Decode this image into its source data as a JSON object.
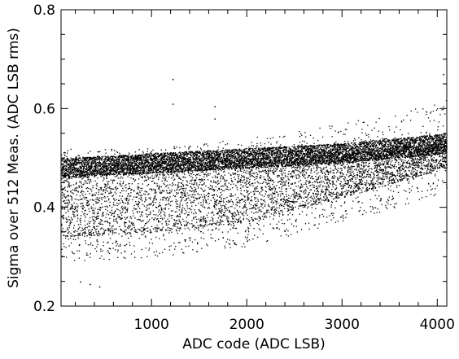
{
  "chart_data": {
    "type": "scatter",
    "xlabel": "ADC code (ADC LSB)",
    "ylabel": "Sigma over 512 Meas. (ADC LSB rms)",
    "xlim": [
      50,
      4100
    ],
    "ylim": [
      0.2,
      0.8
    ],
    "x_ticks": [
      1000,
      2000,
      3000,
      4000
    ],
    "y_ticks": [
      0.2,
      0.4,
      0.6,
      0.8
    ],
    "x_tick_labels": [
      "1000",
      "2000",
      "3000",
      "4000"
    ],
    "y_tick_labels": [
      "0.2",
      "0.4",
      "0.6",
      "0.8"
    ],
    "x_minor_step": 200,
    "y_minor_step": 0.05,
    "grid": false,
    "legend": "none",
    "point_color": "#000000",
    "trend": {
      "description_values": {
        "upper_envelope": [
          [
            50,
            0.52
          ],
          [
            1000,
            0.52
          ],
          [
            2000,
            0.54
          ],
          [
            3000,
            0.57
          ],
          [
            4096,
            0.62
          ]
        ],
        "dense_band": [
          [
            50,
            0.48
          ],
          [
            1000,
            0.49
          ],
          [
            2000,
            0.5
          ],
          [
            3000,
            0.51
          ],
          [
            4096,
            0.53
          ]
        ],
        "lower_envelope": [
          [
            50,
            0.29
          ],
          [
            1000,
            0.3
          ],
          [
            2000,
            0.32
          ],
          [
            3000,
            0.37
          ],
          [
            4096,
            0.43
          ]
        ]
      }
    },
    "outliers": [
      {
        "x": 1220,
        "y": 0.66
      },
      {
        "x": 1220,
        "y": 0.61
      },
      {
        "x": 1660,
        "y": 0.605
      },
      {
        "x": 1660,
        "y": 0.58
      },
      {
        "x": 4060,
        "y": 0.67
      },
      {
        "x": 350,
        "y": 0.245
      },
      {
        "x": 450,
        "y": 0.24
      },
      {
        "x": 250,
        "y": 0.25
      }
    ],
    "n_points": 4096
  }
}
